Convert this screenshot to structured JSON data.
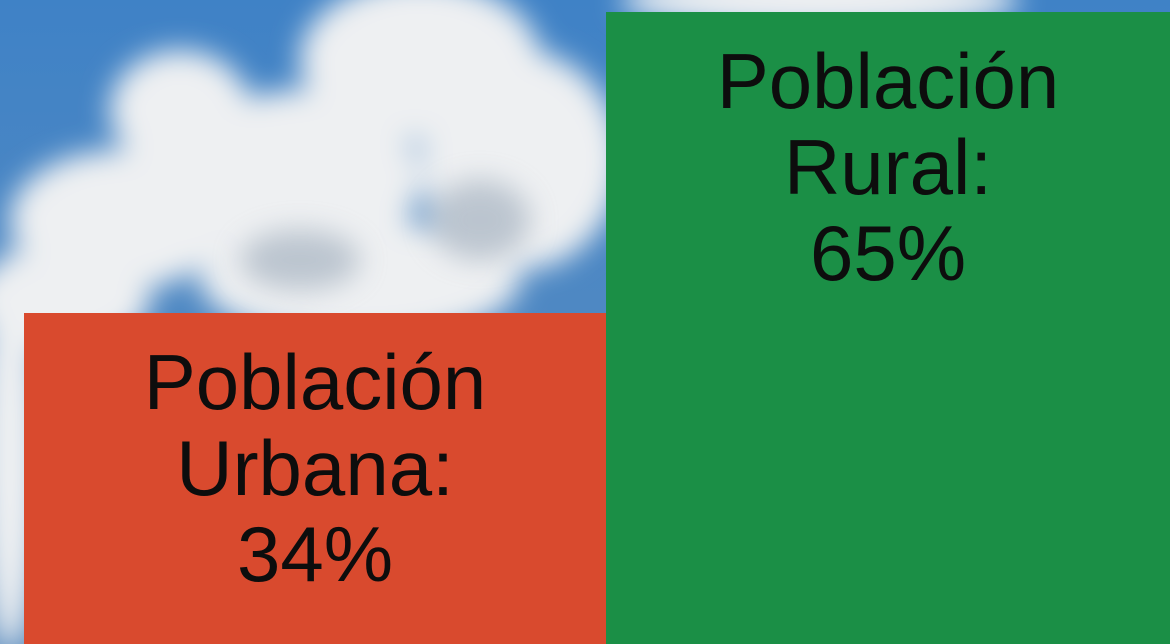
{
  "chart_data": {
    "type": "bar",
    "categories": [
      "Población Urbana:",
      "Población Rural:"
    ],
    "values": [
      34,
      65
    ],
    "value_labels": [
      "34%",
      "65%"
    ],
    "colors": [
      "#d94a2e",
      "#1b8f46"
    ]
  }
}
